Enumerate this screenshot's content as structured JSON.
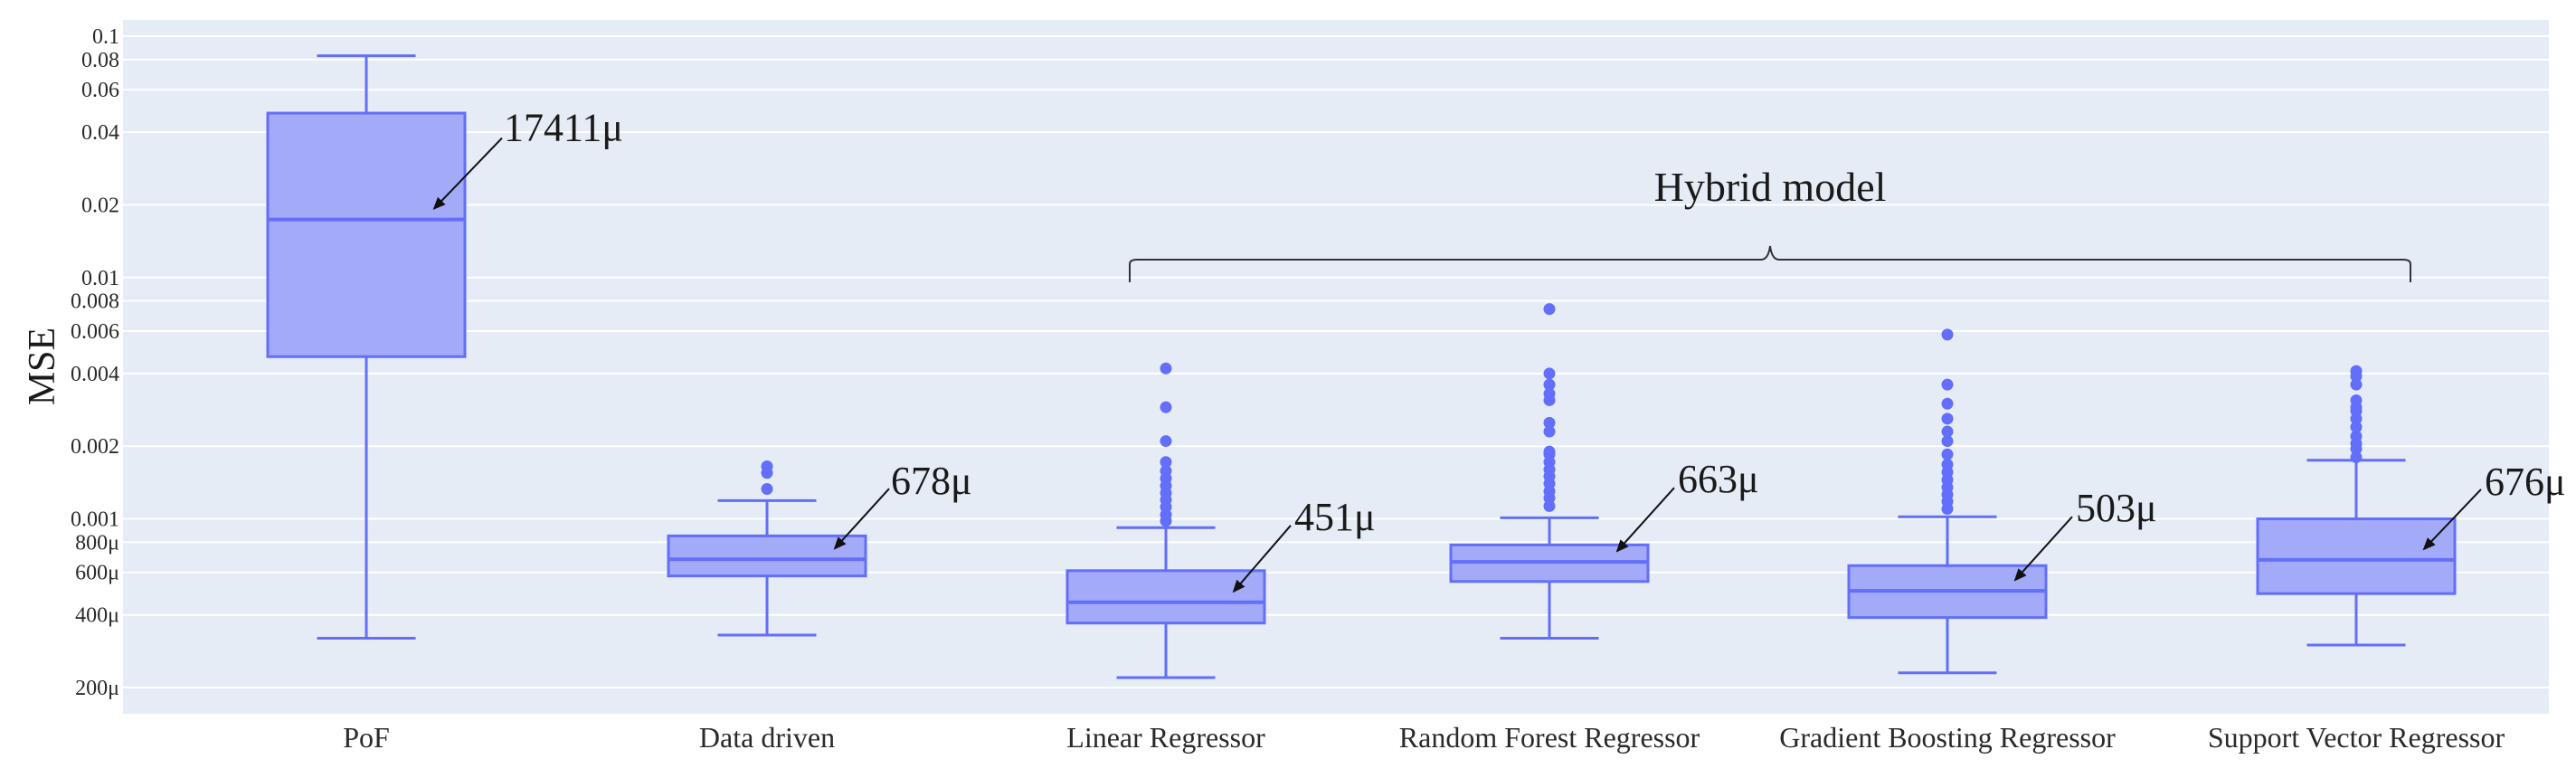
{
  "chart_data": {
    "type": "box",
    "ylabel": "MSE",
    "yscale": "log",
    "ylim": [
      0.00018,
      0.105
    ],
    "yticks": [
      {
        "value": 0.0002,
        "label": "200μ"
      },
      {
        "value": 0.0004,
        "label": "400μ"
      },
      {
        "value": 0.0006,
        "label": "600μ"
      },
      {
        "value": 0.0008,
        "label": "800μ"
      },
      {
        "value": 0.001,
        "label": "0.001"
      },
      {
        "value": 0.002,
        "label": "0.002"
      },
      {
        "value": 0.004,
        "label": "0.004"
      },
      {
        "value": 0.006,
        "label": "0.006"
      },
      {
        "value": 0.008,
        "label": "0.008"
      },
      {
        "value": 0.01,
        "label": "0.01"
      },
      {
        "value": 0.02,
        "label": "0.02"
      },
      {
        "value": 0.04,
        "label": "0.04"
      },
      {
        "value": 0.06,
        "label": "0.06"
      },
      {
        "value": 0.08,
        "label": "0.08"
      },
      {
        "value": 0.1,
        "label": "0.1"
      }
    ],
    "grid": true,
    "colors": {
      "plot_bg": "#e5ecf6",
      "box_fill": "#a3aaf7",
      "box_line": "#636efa",
      "grid": "#ffffff"
    },
    "categories": [
      "PoF",
      "Data driven",
      "Linear Regressor",
      "Random Forest Regressor",
      "Gradient Boosting Regressor",
      "Support Vector Regressor"
    ],
    "boxes": [
      {
        "name": "PoF",
        "whisker_low": 0.00032,
        "q1": 0.0047,
        "median": 0.0174,
        "q3": 0.048,
        "whisker_high": 0.083,
        "outliers": []
      },
      {
        "name": "Data driven",
        "whisker_low": 0.00033,
        "q1": 0.00058,
        "median": 0.00068,
        "q3": 0.00085,
        "whisker_high": 0.00119,
        "outliers": [
          0.00133,
          0.00155,
          0.00165
        ]
      },
      {
        "name": "Linear Regressor",
        "whisker_low": 0.00022,
        "q1": 0.00037,
        "median": 0.000451,
        "q3": 0.00061,
        "whisker_high": 0.00092,
        "outliers": [
          0.00098,
          0.00104,
          0.00112,
          0.0012,
          0.00128,
          0.00137,
          0.00147,
          0.00158,
          0.00172,
          0.0021,
          0.0029,
          0.0042
        ]
      },
      {
        "name": "Random Forest Regressor",
        "whisker_low": 0.00032,
        "q1": 0.00055,
        "median": 0.000663,
        "q3": 0.00078,
        "whisker_high": 0.00101,
        "outliers": [
          0.00113,
          0.00122,
          0.0013,
          0.0014,
          0.0015,
          0.0016,
          0.00172,
          0.00185,
          0.0019,
          0.0023,
          0.0025,
          0.0031,
          0.0033,
          0.0036,
          0.004,
          0.0074
        ]
      },
      {
        "name": "Gradient Boosting Regressor",
        "whisker_low": 0.00023,
        "q1": 0.00039,
        "median": 0.000503,
        "q3": 0.00064,
        "whisker_high": 0.00102,
        "outliers": [
          0.0011,
          0.00118,
          0.00126,
          0.00135,
          0.00145,
          0.00156,
          0.00168,
          0.00185,
          0.0021,
          0.0023,
          0.0026,
          0.003,
          0.0036,
          0.0058
        ]
      },
      {
        "name": "Support Vector Regressor",
        "whisker_low": 0.0003,
        "q1": 0.00049,
        "median": 0.000676,
        "q3": 0.001,
        "whisker_high": 0.00175,
        "outliers": [
          0.0018,
          0.00195,
          0.00205,
          0.0022,
          0.0024,
          0.0026,
          0.0028,
          0.0029,
          0.0031,
          0.0036,
          0.0039,
          0.0041
        ]
      }
    ],
    "annotations": [
      {
        "text": "17411μ",
        "box": 0
      },
      {
        "text": "678μ",
        "box": 1
      },
      {
        "text": "451μ",
        "box": 2
      },
      {
        "text": "663μ",
        "box": 3
      },
      {
        "text": "503μ",
        "box": 4
      },
      {
        "text": "676μ",
        "box": 5
      }
    ],
    "group_label": {
      "text": "Hybrid model",
      "from_box": 2,
      "to_box": 5
    }
  }
}
